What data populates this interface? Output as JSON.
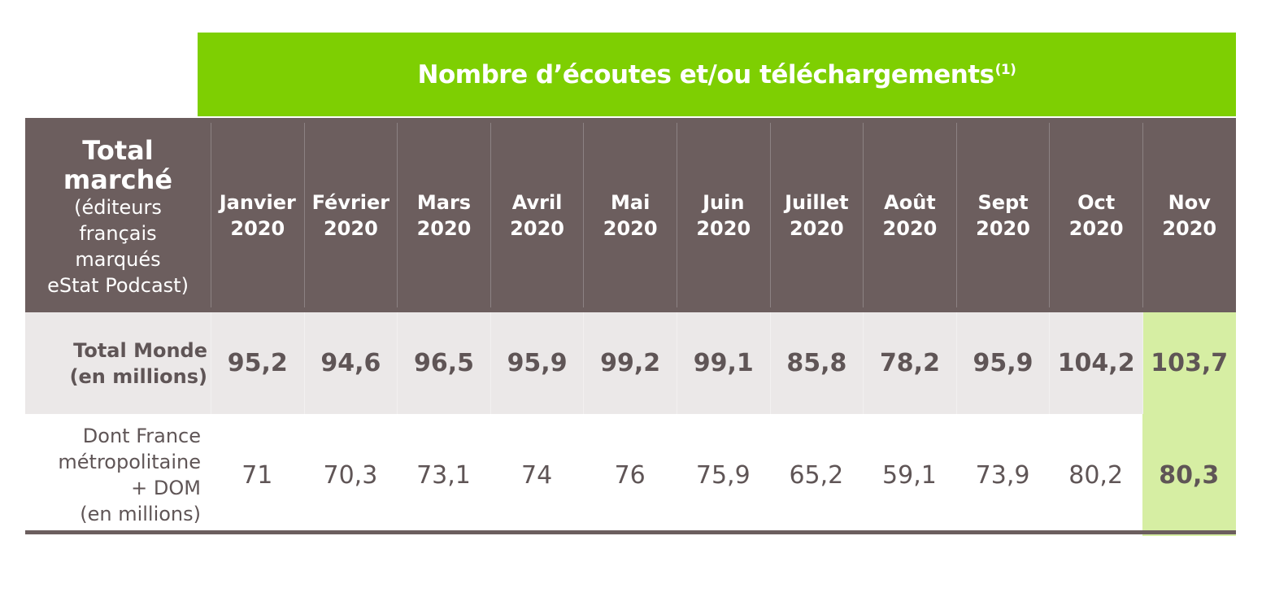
{
  "banner": {
    "title": "Nombre d’écoutes et/ou téléchargements",
    "superscript": "(1)"
  },
  "colors": {
    "banner_green": "#7ecf02",
    "header_brown": "#6c5e5e",
    "row1_bg": "#ebe8e8",
    "highlight_green": "#d6eea3",
    "text_dark": "#5f5556"
  },
  "header": {
    "label_title_1": "Total",
    "label_title_2": "marché",
    "label_sub_1": "(éditeurs",
    "label_sub_2": "français",
    "label_sub_3": "marqués",
    "label_sub_4": "eStat Podcast)"
  },
  "chart_data": {
    "type": "table",
    "columns": [
      [
        "Janvier",
        "2020"
      ],
      [
        "Février",
        "2020"
      ],
      [
        "Mars",
        "2020"
      ],
      [
        "Avril",
        "2020"
      ],
      [
        "Mai",
        "2020"
      ],
      [
        "Juin",
        "2020"
      ],
      [
        "Juillet",
        "2020"
      ],
      [
        "Août",
        "2020"
      ],
      [
        "Sept",
        "2020"
      ],
      [
        "Oct",
        "2020"
      ],
      [
        "Nov",
        "2020"
      ]
    ],
    "rows": [
      {
        "label": [
          "Total Monde",
          "(en millions)"
        ],
        "values": [
          "95,2",
          "94,6",
          "96,5",
          "95,9",
          "99,2",
          "99,1",
          "85,8",
          "78,2",
          "95,9",
          "104,2",
          "103,7"
        ]
      },
      {
        "label": [
          "Dont France",
          "métropolitaine",
          "+ DOM",
          "(en millions)"
        ],
        "values": [
          "71",
          "70,3",
          "73,1",
          "74",
          "76",
          "75,9",
          "65,2",
          "59,1",
          "73,9",
          "80,2",
          "80,3"
        ]
      }
    ],
    "highlight_column": 10
  }
}
